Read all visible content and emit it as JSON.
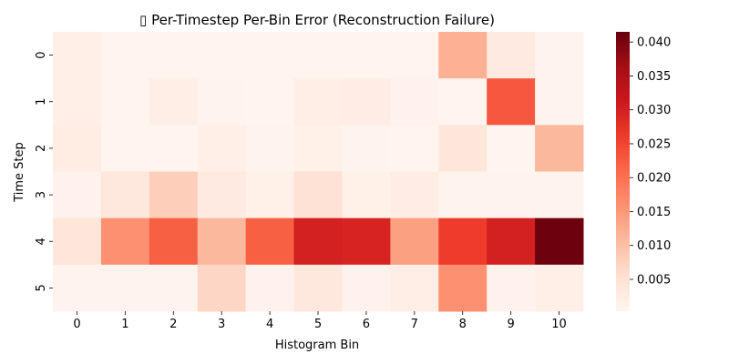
{
  "chart_data": {
    "type": "heatmap",
    "title": "▯ Per-Timestep Per-Bin Error (Reconstruction Failure)",
    "xlabel": "Histogram Bin",
    "ylabel": "Time Step",
    "x_categories": [
      "0",
      "1",
      "2",
      "3",
      "4",
      "5",
      "6",
      "7",
      "8",
      "9",
      "10"
    ],
    "y_categories": [
      "0",
      "1",
      "2",
      "3",
      "4",
      "5"
    ],
    "values": [
      [
        0.0018,
        0.0006,
        0.0006,
        0.0006,
        0.0006,
        0.0006,
        0.0006,
        0.0006,
        0.012,
        0.003,
        0.0008
      ],
      [
        0.0018,
        0.0006,
        0.002,
        0.0008,
        0.0006,
        0.002,
        0.0024,
        0.001,
        0.0006,
        0.023,
        0.0008
      ],
      [
        0.0025,
        0.0006,
        0.0006,
        0.0018,
        0.0008,
        0.0016,
        0.0008,
        0.0006,
        0.004,
        0.0006,
        0.011
      ],
      [
        0.0012,
        0.0038,
        0.008,
        0.003,
        0.0016,
        0.005,
        0.0016,
        0.0024,
        0.0008,
        0.0008,
        0.0008
      ],
      [
        0.004,
        0.016,
        0.022,
        0.011,
        0.022,
        0.03,
        0.0295,
        0.014,
        0.026,
        0.03,
        0.041
      ],
      [
        0.0008,
        0.0008,
        0.0008,
        0.0068,
        0.0012,
        0.0038,
        0.001,
        0.002,
        0.016,
        0.0012,
        0.0018
      ]
    ],
    "colormap": "Reds",
    "vmin": 0.0003,
    "vmax": 0.0415,
    "colorbar_ticks": [
      0.005,
      0.01,
      0.015,
      0.02,
      0.025,
      0.03,
      0.035,
      0.04
    ],
    "colorbar_tick_labels": [
      "0.005",
      "0.010",
      "0.015",
      "0.020",
      "0.025",
      "0.030",
      "0.035",
      "0.040"
    ]
  }
}
